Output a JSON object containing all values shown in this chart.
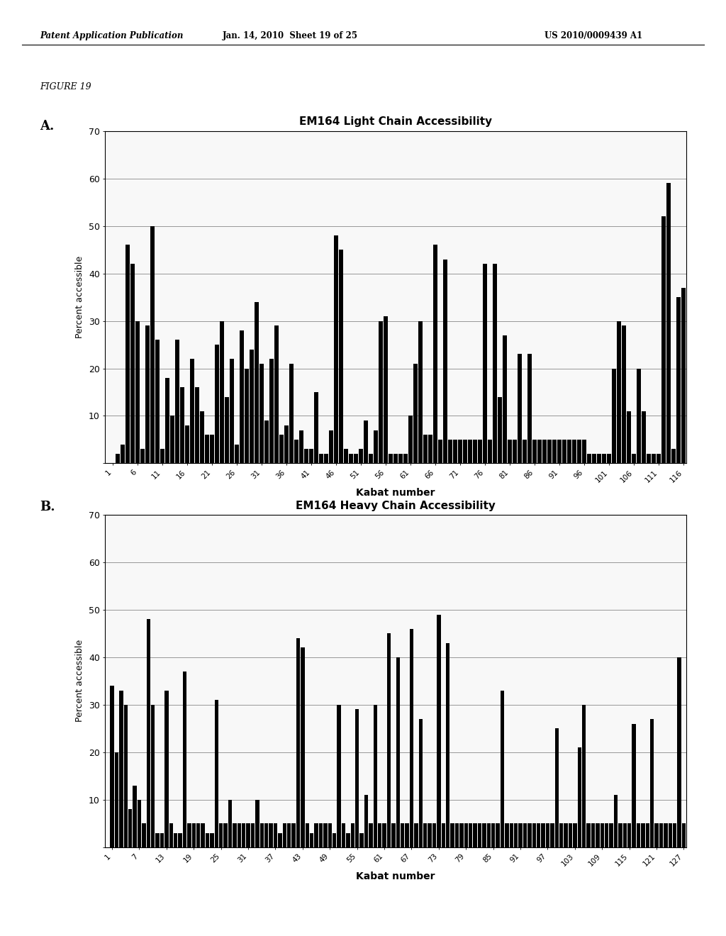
{
  "title_A": "EM164 Light Chain Accessibility",
  "title_B": "EM164 Heavy Chain Accessibility",
  "ylabel": "Percent accessible",
  "xlabel": "Kabat number",
  "ylim": [
    0,
    70
  ],
  "yticks": [
    0,
    10,
    20,
    30,
    40,
    50,
    60,
    70
  ],
  "figure_label_A": "A.",
  "figure_label_B": "B.",
  "figure_title": "FIGURE 19",
  "header_left": "Patent Application Publication",
  "header_center": "Jan. 14, 2010  Sheet 19 of 25",
  "header_right": "US 2010/0009439 A1",
  "xticks_A": [
    1,
    6,
    11,
    16,
    21,
    26,
    31,
    36,
    41,
    46,
    51,
    56,
    61,
    66,
    71,
    76,
    81,
    86,
    91,
    96,
    101,
    106,
    111,
    116
  ],
  "xticks_B": [
    1,
    7,
    13,
    19,
    25,
    31,
    37,
    43,
    49,
    55,
    61,
    67,
    73,
    79,
    85,
    91,
    97,
    103,
    109,
    115,
    121,
    127
  ],
  "bar_color": "#000000",
  "bg_color": "#ffffff",
  "grid_color": "#888888",
  "n_light": 116,
  "n_heavy": 127,
  "light_chain_data": {
    "1": 0,
    "2": 2,
    "3": 4,
    "4": 46,
    "5": 42,
    "6": 30,
    "7": 3,
    "8": 29,
    "9": 50,
    "10": 26,
    "11": 3,
    "12": 18,
    "13": 10,
    "14": 26,
    "15": 16,
    "16": 8,
    "17": 22,
    "18": 16,
    "19": 11,
    "20": 6,
    "21": 6,
    "22": 25,
    "23": 30,
    "24": 14,
    "25": 22,
    "26": 4,
    "27": 28,
    "28": 20,
    "29": 24,
    "30": 34,
    "31": 21,
    "32": 9,
    "33": 22,
    "34": 29,
    "35": 6,
    "36": 8,
    "37": 21,
    "38": 5,
    "39": 7,
    "40": 3,
    "41": 3,
    "42": 15,
    "43": 2,
    "44": 2,
    "45": 7,
    "46": 48,
    "47": 45,
    "48": 3,
    "49": 2,
    "50": 2,
    "51": 3,
    "52": 9,
    "53": 2,
    "54": 7,
    "55": 30,
    "56": 31,
    "57": 2,
    "58": 2,
    "59": 2,
    "60": 2,
    "61": 10,
    "62": 21,
    "63": 30,
    "64": 6,
    "65": 6,
    "66": 46,
    "67": 5,
    "68": 43,
    "69": 5,
    "70": 5,
    "71": 5,
    "72": 5,
    "73": 5,
    "74": 5,
    "75": 5,
    "76": 42,
    "77": 5,
    "78": 42,
    "79": 14,
    "80": 27,
    "81": 5,
    "82": 5,
    "83": 23,
    "84": 5,
    "85": 23,
    "86": 5,
    "87": 5,
    "88": 5,
    "89": 5,
    "90": 5,
    "91": 5,
    "92": 5,
    "93": 5,
    "94": 5,
    "95": 5,
    "96": 5,
    "97": 2,
    "98": 2,
    "99": 2,
    "100": 2,
    "101": 2,
    "102": 20,
    "103": 30,
    "104": 29,
    "105": 11,
    "106": 2,
    "107": 20,
    "108": 11,
    "109": 2,
    "110": 2,
    "111": 2,
    "112": 52,
    "113": 59,
    "114": 3,
    "115": 35,
    "116": 37
  },
  "heavy_chain_data": {
    "1": 34,
    "2": 20,
    "3": 33,
    "4": 30,
    "5": 8,
    "6": 13,
    "7": 10,
    "8": 5,
    "9": 48,
    "10": 30,
    "11": 3,
    "12": 3,
    "13": 33,
    "14": 5,
    "15": 3,
    "16": 3,
    "17": 37,
    "18": 5,
    "19": 5,
    "20": 5,
    "21": 5,
    "22": 3,
    "23": 3,
    "24": 31,
    "25": 5,
    "26": 5,
    "27": 10,
    "28": 5,
    "29": 5,
    "30": 5,
    "31": 5,
    "32": 5,
    "33": 10,
    "34": 5,
    "35": 5,
    "36": 5,
    "37": 5,
    "38": 3,
    "39": 5,
    "40": 5,
    "41": 5,
    "42": 44,
    "43": 42,
    "44": 5,
    "45": 3,
    "46": 5,
    "47": 5,
    "48": 5,
    "49": 5,
    "50": 3,
    "51": 30,
    "52": 5,
    "53": 3,
    "54": 5,
    "55": 29,
    "56": 3,
    "57": 11,
    "58": 5,
    "59": 30,
    "60": 5,
    "61": 5,
    "62": 45,
    "63": 5,
    "64": 40,
    "65": 5,
    "66": 5,
    "67": 46,
    "68": 5,
    "69": 27,
    "70": 5,
    "71": 5,
    "72": 5,
    "73": 49,
    "74": 5,
    "75": 43,
    "76": 5,
    "77": 5,
    "78": 5,
    "79": 5,
    "80": 5,
    "81": 5,
    "82": 5,
    "83": 5,
    "84": 5,
    "85": 5,
    "86": 5,
    "87": 33,
    "88": 5,
    "89": 5,
    "90": 5,
    "91": 5,
    "92": 5,
    "93": 5,
    "94": 5,
    "95": 5,
    "96": 5,
    "97": 5,
    "98": 5,
    "99": 25,
    "100": 5,
    "101": 5,
    "102": 5,
    "103": 5,
    "104": 21,
    "105": 30,
    "106": 5,
    "107": 5,
    "108": 5,
    "109": 5,
    "110": 5,
    "111": 5,
    "112": 11,
    "113": 5,
    "114": 5,
    "115": 5,
    "116": 26,
    "117": 5,
    "118": 5,
    "119": 5,
    "120": 27,
    "121": 5,
    "122": 5,
    "123": 5,
    "124": 5,
    "125": 5,
    "126": 40,
    "127": 5
  }
}
